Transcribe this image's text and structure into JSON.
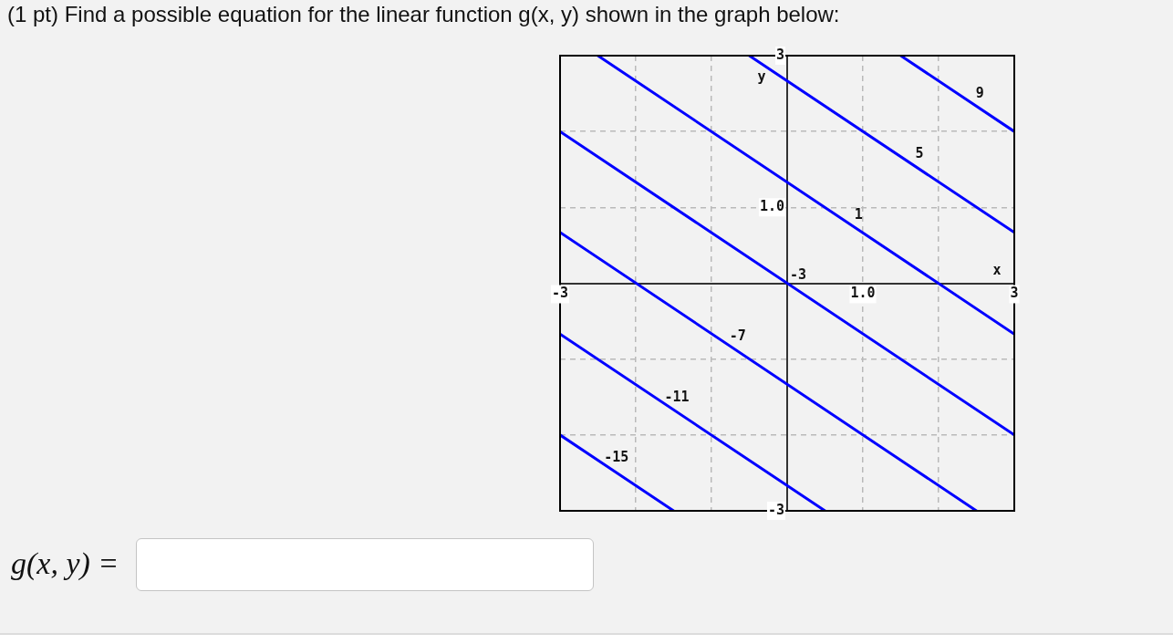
{
  "chart_data": {
    "type": "line",
    "title": "(1 pt) Find a possible equation for the linear function g(x, y) shown in the graph below:",
    "xlabel": "x",
    "ylabel": "y",
    "annotations": [
      "g(x, y) ="
    ],
    "xlim": [
      -3,
      3
    ],
    "ylim": [
      -3,
      3
    ],
    "xticks": [
      -3,
      {
        "value": -2,
        "label": null
      },
      {
        "value": -1,
        "label": null
      },
      {
        "value": 0,
        "label": null
      },
      {
        "value": 1,
        "label": "1.0"
      },
      {
        "value": 2,
        "label": null
      },
      3
    ],
    "yticks": [
      -3,
      {
        "value": -2,
        "label": null
      },
      {
        "value": -1,
        "label": null
      },
      {
        "value": 0,
        "label": null
      },
      {
        "value": 1,
        "label": "1.0"
      },
      {
        "value": 2,
        "label": null
      },
      3
    ],
    "grid": true,
    "series": [
      {
        "name": "9",
        "color": "#0000ff",
        "x": [
          1.5,
          3
        ],
        "values": [
          3,
          2
        ]
      },
      {
        "name": "5",
        "color": "#0000ff",
        "x": [
          -0.5,
          3
        ],
        "values": [
          3,
          0.67
        ]
      },
      {
        "name": "1",
        "color": "#0000ff",
        "x": [
          -2.5,
          3
        ],
        "values": [
          3,
          -0.67
        ]
      },
      {
        "name": "-3",
        "color": "#0000ff",
        "x": [
          -3,
          3
        ],
        "values": [
          2,
          -2
        ]
      },
      {
        "name": "-7",
        "color": "#0000ff",
        "x": [
          -3,
          2.5
        ],
        "values": [
          0.67,
          -3
        ]
      },
      {
        "name": "-11",
        "color": "#0000ff",
        "x": [
          -3,
          0.5
        ],
        "values": [
          -0.67,
          -3
        ]
      },
      {
        "name": "-15",
        "color": "#0000ff",
        "x": [
          -3,
          -1.5
        ],
        "values": [
          -2,
          -3
        ]
      }
    ]
  }
}
